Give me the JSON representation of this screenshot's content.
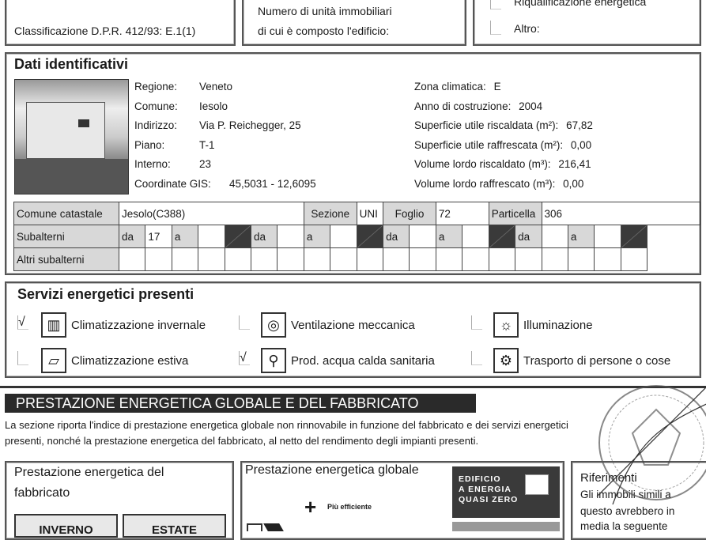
{
  "top": {
    "classification": "Classificazione D.P.R. 412/93: E.1(1)",
    "units_line1": "Numero di unità immobiliari",
    "units_line2": "di cui è composto l'edificio:",
    "opt_riqualificazione": "Riqualificazione energetica",
    "opt_altro": "Altro:"
  },
  "dati": {
    "title": "Dati identificativi",
    "left": [
      {
        "label": "Regione:",
        "value": "Veneto"
      },
      {
        "label": "Comune:",
        "value": "Iesolo"
      },
      {
        "label": "Indirizzo:",
        "value": "Via P. Reichegger, 25"
      },
      {
        "label": "Piano:",
        "value": "T-1"
      },
      {
        "label": "Interno:",
        "value": "23"
      },
      {
        "label": "Coordinate GIS:",
        "value": "45,5031 - 12,6095"
      }
    ],
    "right": [
      {
        "label": "Zona climatica:",
        "value": "E"
      },
      {
        "label": "Anno di costruzione:",
        "value": "2004"
      },
      {
        "label": "Superficie utile riscaldata (m²):",
        "value": "67,82"
      },
      {
        "label": "Superficie utile raffrescata (m²):",
        "value": "0,00"
      },
      {
        "label": "Volume lordo riscaldato (m³):",
        "value": "216,41"
      },
      {
        "label": "Volume lordo raffrescato (m³):",
        "value": "0,00"
      }
    ],
    "catasto": {
      "comune_label": "Comune catastale",
      "comune_value": "Jesolo(C388)",
      "sezione_label": "Sezione",
      "sezione_value": "UNI",
      "foglio_label": "Foglio",
      "foglio_value": "72",
      "particella_label": "Particella",
      "particella_value": "306",
      "subalterni_label": "Subalterni",
      "subalterni": [
        {
          "da": "da",
          "da_val": "17",
          "a": "a",
          "a_val": ""
        },
        {
          "da": "da",
          "da_val": "",
          "a": "a",
          "a_val": ""
        },
        {
          "da": "da",
          "da_val": "",
          "a": "a",
          "a_val": ""
        },
        {
          "da": "da",
          "da_val": "",
          "a": "a",
          "a_val": ""
        }
      ],
      "altri_label": "Altri subalterni"
    }
  },
  "servizi": {
    "title": "Servizi energetici presenti",
    "items": [
      {
        "label": "Climatizzazione invernale",
        "checked": true,
        "icon": "radiator-icon",
        "glyph": "▥"
      },
      {
        "label": "Ventilazione meccanica",
        "checked": false,
        "icon": "fan-icon",
        "glyph": "◎"
      },
      {
        "label": "Illuminazione",
        "checked": false,
        "icon": "lightbulb-icon",
        "glyph": "☼"
      },
      {
        "label": "Climatizzazione estiva",
        "checked": false,
        "icon": "air-conditioner-icon",
        "glyph": "▱"
      },
      {
        "label": "Prod. acqua calda sanitaria",
        "checked": true,
        "icon": "faucet-icon",
        "glyph": "⚲"
      },
      {
        "label": "Trasporto di persone o cose",
        "checked": false,
        "icon": "gear-icon",
        "glyph": "⚙"
      }
    ]
  },
  "prestazione": {
    "header": "PRESTAZIONE ENERGETICA GLOBALE E DEL FABBRICATO",
    "desc_line1": "La sezione riporta l'indice di prestazione energetica globale non rinnovabile in funzione del fabbricato e dei servizi energetici",
    "desc_line2": "presenti, nonché la prestazione energetica del fabbricato, al netto del rendimento degli impianti presenti.",
    "fabbricato_line1": "Prestazione energetica del",
    "fabbricato_line2": "fabbricato",
    "inverno": "INVERNO",
    "estate": "ESTATE",
    "globale_title": "Prestazione energetica globale",
    "piu_efficiente": "Più efficiente",
    "nzeb_lines": [
      "EDIFICIO",
      "A ENERGIA",
      "QUASI ZERO"
    ],
    "riferimenti_title": "Riferimenti",
    "riferimenti_lines": [
      "Gli immobili simili a",
      "questo avrebbero in",
      "media la seguente"
    ]
  }
}
